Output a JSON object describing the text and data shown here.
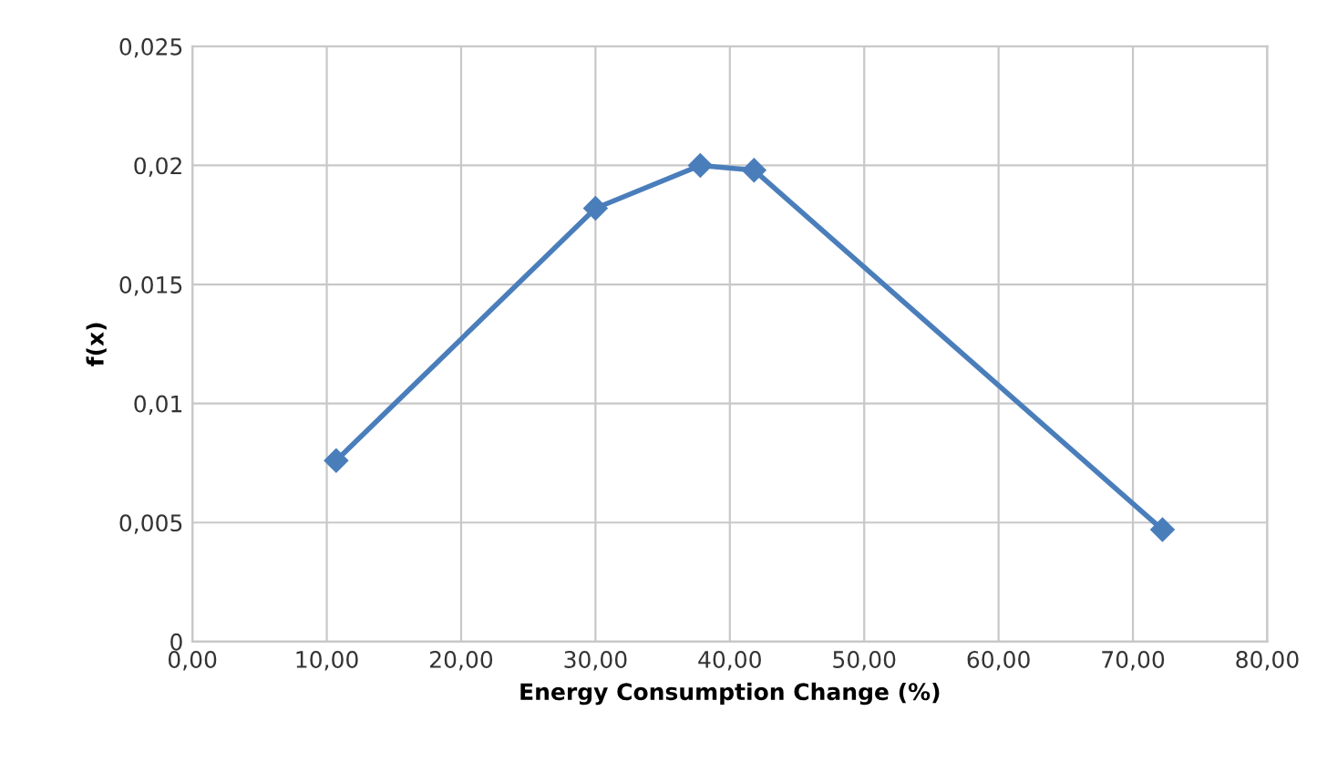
{
  "chart_data": {
    "type": "line",
    "xlabel": "Energy Consumption Change (%)",
    "ylabel": "f(x)",
    "x": [
      10.7,
      30.0,
      37.8,
      41.8,
      72.2
    ],
    "series": [
      {
        "color": "#4a7ebb",
        "values": [
          0.0076,
          0.0182,
          0.02,
          0.0198,
          0.0047
        ]
      }
    ],
    "xlim": [
      0,
      80
    ],
    "ylim": [
      0,
      0.025
    ],
    "xticks": [
      {
        "value": 0,
        "label": "0,00"
      },
      {
        "value": 10,
        "label": "10,00"
      },
      {
        "value": 20,
        "label": "20,00"
      },
      {
        "value": 30,
        "label": "30,00"
      },
      {
        "value": 40,
        "label": "40,00"
      },
      {
        "value": 50,
        "label": "50,00"
      },
      {
        "value": 60,
        "label": "60,00"
      },
      {
        "value": 70,
        "label": "70,00"
      },
      {
        "value": 80,
        "label": "80,00"
      }
    ],
    "yticks": [
      0,
      {
        "value": 0.005,
        "label": "0,005"
      },
      {
        "value": 0.01,
        "label": "0,01"
      },
      {
        "value": 0.015,
        "label": "0,015"
      },
      {
        "value": 0.02,
        "label": "0,02"
      },
      {
        "value": 0.025,
        "label": "0,025"
      }
    ],
    "grid": true,
    "marker": "diamond",
    "line_style": "solid"
  }
}
